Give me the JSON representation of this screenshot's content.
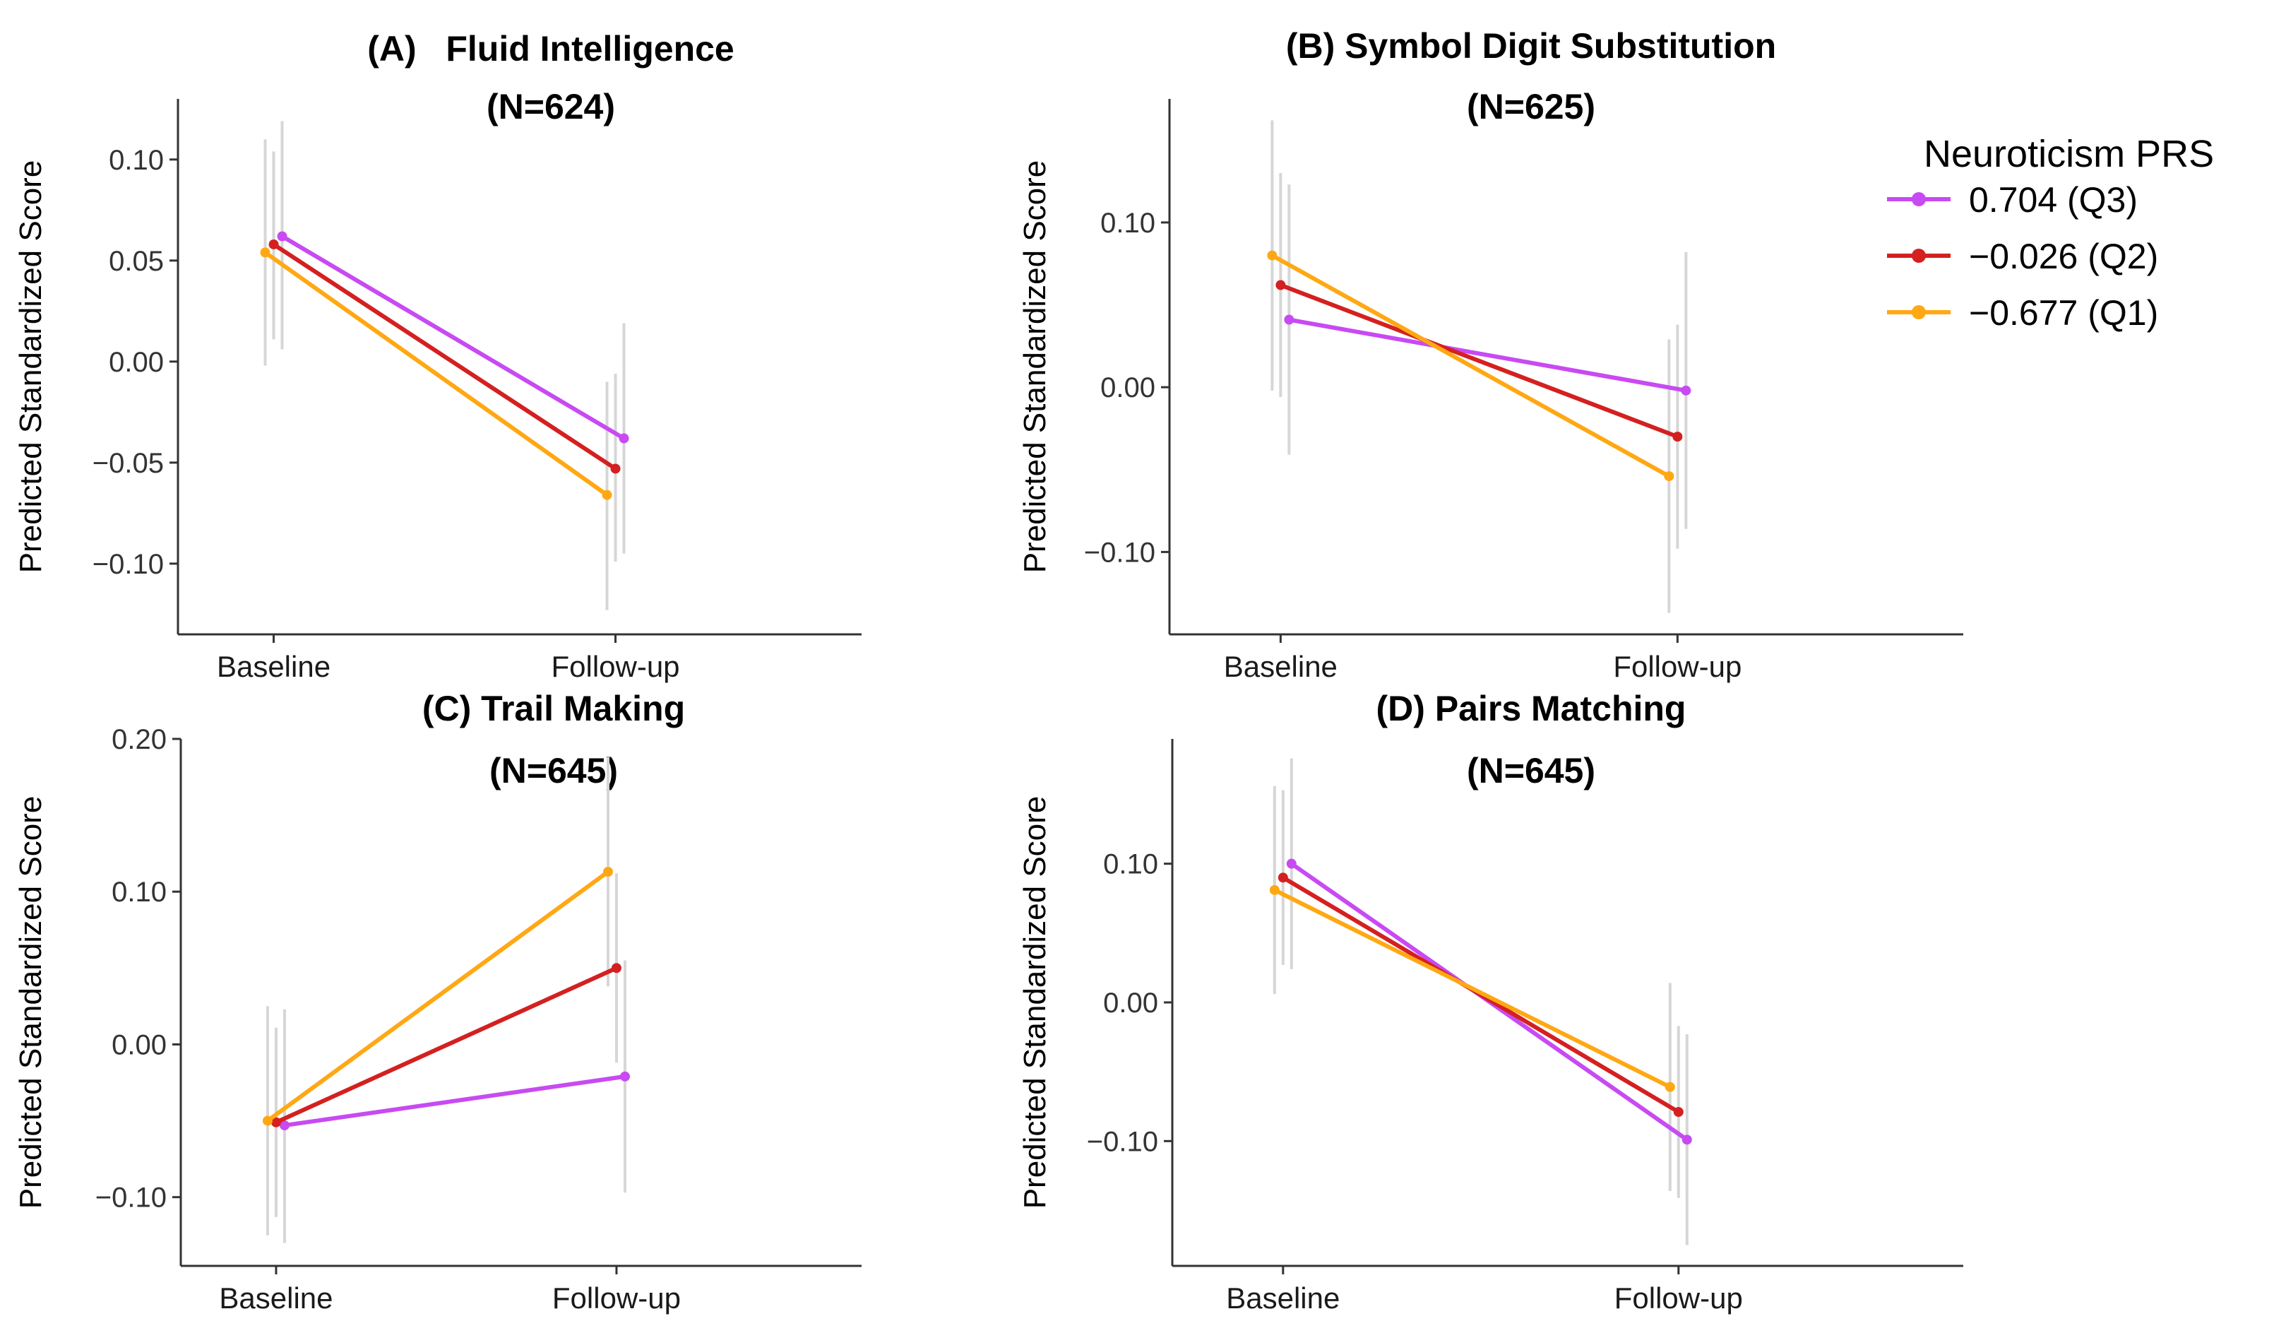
{
  "legend": {
    "title": "Neuroticism PRS",
    "entries": [
      {
        "label": "0.704 (Q3)",
        "color": "#c84af2"
      },
      {
        "label": "−0.026 (Q2)",
        "color": "#d42020"
      },
      {
        "label": "−0.677 (Q1)",
        "color": "#ffa814"
      }
    ]
  },
  "chart_data": [
    {
      "type": "line",
      "title": "(A)   Fluid Intelligence",
      "subtitle": "(N=624)",
      "ylabel": "Predicted Standardized Score",
      "categories": [
        "Baseline",
        "Follow-up"
      ],
      "ylim": [
        -0.135,
        0.13
      ],
      "yticks": [
        0.1,
        0.05,
        0.0,
        -0.05,
        -0.1
      ],
      "ytick_labels": [
        "0.10",
        "0.05",
        "0.00",
        "−0.05",
        "−0.10"
      ],
      "series": [
        {
          "name": "0.704 (Q3)",
          "color": "#c84af2",
          "values": [
            0.062,
            -0.038
          ],
          "ci_low": [
            0.006,
            -0.095
          ],
          "ci_high": [
            0.119,
            0.019
          ]
        },
        {
          "name": "−0.026 (Q2)",
          "color": "#d42020",
          "values": [
            0.058,
            -0.053
          ],
          "ci_low": [
            0.011,
            -0.099
          ],
          "ci_high": [
            0.104,
            -0.006
          ]
        },
        {
          "name": "−0.677 (Q1)",
          "color": "#ffa814",
          "values": [
            0.054,
            -0.066
          ],
          "ci_low": [
            -0.002,
            -0.123
          ],
          "ci_high": [
            0.11,
            -0.01
          ]
        }
      ]
    },
    {
      "type": "line",
      "title": "(B) Symbol Digit Substitution",
      "subtitle": "(N=625)",
      "ylabel": "Predicted Standardized Score",
      "categories": [
        "Baseline",
        "Follow-up"
      ],
      "ylim": [
        -0.15,
        0.175
      ],
      "yticks": [
        0.1,
        0.0,
        -0.1
      ],
      "ytick_labels": [
        "0.10",
        "0.00",
        "−0.10"
      ],
      "series": [
        {
          "name": "0.704 (Q3)",
          "color": "#c84af2",
          "values": [
            0.041,
            -0.002
          ],
          "ci_low": [
            -0.041,
            -0.086
          ],
          "ci_high": [
            0.123,
            0.082
          ]
        },
        {
          "name": "−0.026 (Q2)",
          "color": "#d42020",
          "values": [
            0.062,
            -0.03
          ],
          "ci_low": [
            -0.006,
            -0.098
          ],
          "ci_high": [
            0.13,
            0.038
          ]
        },
        {
          "name": "−0.677 (Q1)",
          "color": "#ffa814",
          "values": [
            0.08,
            -0.054
          ],
          "ci_low": [
            -0.002,
            -0.137
          ],
          "ci_high": [
            0.162,
            0.029
          ]
        }
      ]
    },
    {
      "type": "line",
      "title": "(C) Trail Making",
      "subtitle": "(N=645)",
      "ylabel": "Predicted Standardized Score",
      "categories": [
        "Baseline",
        "Follow-up"
      ],
      "ylim": [
        -0.145,
        0.2
      ],
      "yticks": [
        0.2,
        0.1,
        0.0,
        -0.1
      ],
      "ytick_labels": [
        "0.20",
        "0.10",
        "0.00",
        "−0.10"
      ],
      "series": [
        {
          "name": "0.704 (Q3)",
          "color": "#c84af2",
          "values": [
            -0.053,
            -0.021
          ],
          "ci_low": [
            -0.13,
            -0.097
          ],
          "ci_high": [
            0.023,
            0.055
          ]
        },
        {
          "name": "−0.026 (Q2)",
          "color": "#d42020",
          "values": [
            -0.051,
            0.05
          ],
          "ci_low": [
            -0.113,
            -0.012
          ],
          "ci_high": [
            0.011,
            0.112
          ]
        },
        {
          "name": "−0.677 (Q1)",
          "color": "#ffa814",
          "values": [
            -0.05,
            0.113
          ],
          "ci_low": [
            -0.125,
            0.038
          ],
          "ci_high": [
            0.025,
            0.188
          ]
        }
      ]
    },
    {
      "type": "line",
      "title": "(D) Pairs Matching",
      "subtitle": "(N=645)",
      "ylabel": "Predicted Standardized Score",
      "categories": [
        "Baseline",
        "Follow-up"
      ],
      "ylim": [
        -0.19,
        0.19
      ],
      "yticks": [
        0.1,
        0.0,
        -0.1
      ],
      "ytick_labels": [
        "0.10",
        "0.00",
        "−0.10"
      ],
      "series": [
        {
          "name": "0.704 (Q3)",
          "color": "#c84af2",
          "values": [
            0.1,
            -0.099
          ],
          "ci_low": [
            0.024,
            -0.175
          ],
          "ci_high": [
            0.176,
            -0.023
          ]
        },
        {
          "name": "−0.026 (Q2)",
          "color": "#d42020",
          "values": [
            0.09,
            -0.079
          ],
          "ci_low": [
            0.027,
            -0.141
          ],
          "ci_high": [
            0.153,
            -0.017
          ]
        },
        {
          "name": "−0.677 (Q1)",
          "color": "#ffa814",
          "values": [
            0.081,
            -0.061
          ],
          "ci_low": [
            0.006,
            -0.136
          ],
          "ci_high": [
            0.156,
            0.014
          ]
        }
      ]
    }
  ]
}
